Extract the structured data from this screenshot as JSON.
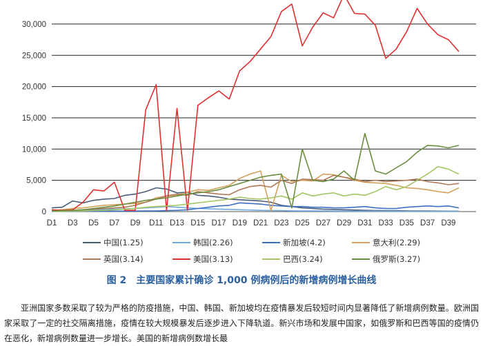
{
  "chart_data": {
    "type": "line",
    "categories": [
      "D1",
      "D2",
      "D3",
      "D4",
      "D5",
      "D6",
      "D7",
      "D8",
      "D9",
      "D10",
      "D11",
      "D12",
      "D13",
      "D14",
      "D15",
      "D16",
      "D17",
      "D18",
      "D19",
      "D20",
      "D21",
      "D22",
      "D23",
      "D24",
      "D25",
      "D26",
      "D27",
      "D28",
      "D29",
      "D30",
      "D31",
      "D32",
      "D33",
      "D34",
      "D35",
      "D36",
      "D37",
      "D38",
      "D39",
      "D40"
    ],
    "xtick_labels": [
      "D1",
      "D3",
      "D5",
      "D7",
      "D9",
      "D11",
      "D13",
      "D15",
      "D17",
      "D19",
      "D21",
      "D23",
      "D25",
      "D27",
      "D29",
      "D31",
      "D33",
      "D35",
      "D37",
      "D39"
    ],
    "ylim": [
      0,
      35000
    ],
    "yticks": [
      "0",
      "5,000",
      "10,000",
      "15,000",
      "20,000",
      "25,000",
      "30,000"
    ],
    "ytick_values": [
      0,
      5000,
      10000,
      15000,
      20000,
      25000,
      30000
    ],
    "grid": "horizontal",
    "legend_position": "bottom",
    "series": [
      {
        "name": "中国(1.25)",
        "color": "#4a5c78",
        "values": [
          600,
          700,
          1700,
          1400,
          1800,
          2000,
          2100,
          2600,
          2800,
          3200,
          3800,
          3600,
          3000,
          3100,
          2600,
          2500,
          2300,
          2000,
          1900,
          1800,
          1700,
          1500,
          1000,
          800,
          600,
          500,
          400,
          350,
          300,
          250,
          200,
          180,
          150,
          150,
          120,
          100,
          100,
          90,
          80,
          70
        ]
      },
      {
        "name": "韩国(2.26)",
        "color": "#6fa8dc",
        "values": [
          100,
          150,
          200,
          250,
          300,
          350,
          400,
          450,
          500,
          600,
          700,
          800,
          700,
          600,
          500,
          450,
          400,
          350,
          300,
          250,
          200,
          180,
          150,
          120,
          100,
          100,
          100,
          90,
          90,
          80,
          80,
          80,
          70,
          70,
          60,
          60,
          60,
          50,
          50,
          50
        ]
      },
      {
        "name": "新加坡(4.2)",
        "color": "#3c6ec4",
        "values": [
          50,
          50,
          60,
          60,
          70,
          70,
          80,
          80,
          90,
          100,
          100,
          150,
          200,
          300,
          500,
          700,
          900,
          1000,
          1400,
          1300,
          1200,
          1000,
          900,
          800,
          800,
          700,
          700,
          600,
          600,
          700,
          800,
          600,
          500,
          500,
          700,
          800,
          900,
          800,
          900,
          600
        ]
      },
      {
        "name": "意大利(2.29)",
        "color": "#d3a05a",
        "values": [
          200,
          300,
          500,
          600,
          800,
          1000,
          1100,
          1200,
          1300,
          1500,
          2200,
          2500,
          2600,
          3100,
          3500,
          3400,
          3800,
          4200,
          5300,
          6000,
          6500,
          200,
          5800,
          4800,
          5000,
          4900,
          6000,
          5900,
          5500,
          5000,
          4700,
          4600,
          4500,
          4200,
          3800,
          3700,
          3500,
          3200,
          3000,
          3800
        ]
      },
      {
        "name": "英国(3.14)",
        "color": "#b07a56",
        "values": [
          100,
          150,
          200,
          300,
          400,
          500,
          600,
          700,
          1000,
          1500,
          2000,
          2500,
          2800,
          2600,
          3200,
          3000,
          2800,
          2700,
          3500,
          4000,
          4200,
          3900,
          5000,
          4500,
          5200,
          5100,
          5000,
          5800,
          5500,
          5200,
          4800,
          5000,
          4800,
          4900,
          5000,
          5200,
          4800,
          4600,
          4300,
          4500
        ]
      },
      {
        "name": "美国(3.13)",
        "color": "#e02f2f",
        "values": [
          300,
          200,
          300,
          1500,
          3500,
          3300,
          4700,
          200,
          200,
          16300,
          20300,
          200,
          16500,
          200,
          17000,
          18200,
          19300,
          18000,
          22500,
          24000,
          26000,
          28000,
          32000,
          33200,
          26500,
          29500,
          31800,
          31000,
          34700,
          31700,
          31600,
          29800,
          24500,
          26000,
          28800,
          32500,
          30000,
          28300,
          27500,
          25600
        ]
      },
      {
        "name": "巴西(3.24)",
        "color": "#a3c662",
        "values": [
          50,
          50,
          100,
          100,
          150,
          200,
          300,
          400,
          500,
          700,
          800,
          900,
          1000,
          1200,
          1400,
          1600,
          1800,
          2000,
          2300,
          2100,
          2000,
          2200,
          2500,
          2000,
          3000,
          2500,
          2800,
          3000,
          2500,
          2800,
          2600,
          3200,
          4000,
          3500,
          4000,
          5000,
          6000,
          7200,
          6800,
          6000
        ]
      },
      {
        "name": "俄罗斯(3.27)",
        "color": "#6a8e3e",
        "values": [
          100,
          150,
          200,
          300,
          500,
          700,
          900,
          1200,
          1500,
          1800,
          2000,
          2200,
          2500,
          2800,
          3000,
          3200,
          3500,
          4000,
          4500,
          5000,
          5500,
          5800,
          6000,
          600,
          10000,
          5000,
          4800,
          5200,
          6500,
          5000,
          12500,
          6500,
          6000,
          7000,
          8000,
          9500,
          10600,
          10500,
          10200,
          10600
        ]
      }
    ]
  },
  "caption": "图 2　主要国家累计确诊 1,000 例病例后的新增病例增长曲线",
  "body_text": "亚洲国家多数采取了较为严格的防疫措施，中国、韩国、新加坡均在疫情暴发后较短时间内显著降低了新增病例数量。欧洲国家采取了一定的社交隔离措施，疫情在较大规模暴发后逐步进入下降轨道。新兴市场和发展中国家，如俄罗斯和巴西等国的疫情仍在恶化，新增病例数量进一步增长。美国的新增病例数增长最"
}
